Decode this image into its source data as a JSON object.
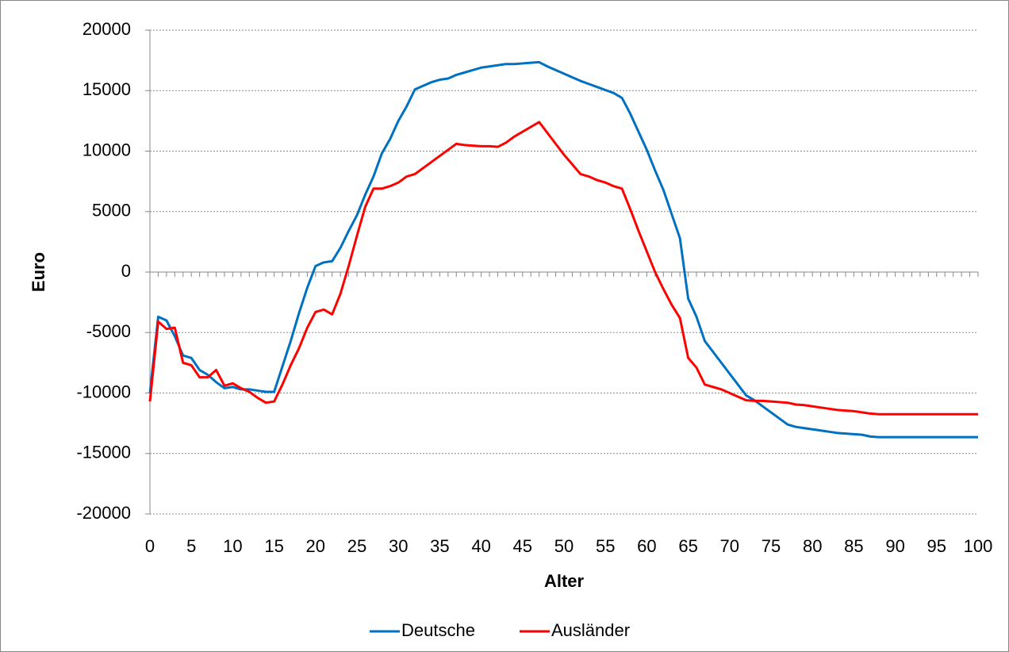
{
  "chart_data": {
    "type": "line",
    "x_label": "Alter",
    "y_label": "Euro",
    "x": [
      0,
      1,
      2,
      3,
      4,
      5,
      6,
      7,
      8,
      9,
      10,
      11,
      12,
      13,
      14,
      15,
      16,
      17,
      18,
      19,
      20,
      21,
      22,
      23,
      24,
      25,
      26,
      27,
      28,
      29,
      30,
      31,
      32,
      33,
      34,
      35,
      36,
      37,
      38,
      39,
      40,
      41,
      42,
      43,
      44,
      45,
      46,
      47,
      48,
      49,
      50,
      51,
      52,
      53,
      54,
      55,
      56,
      57,
      58,
      59,
      60,
      61,
      62,
      63,
      64,
      65,
      66,
      67,
      68,
      69,
      70,
      71,
      72,
      73,
      74,
      75,
      76,
      77,
      78,
      79,
      80,
      81,
      82,
      83,
      84,
      85,
      86,
      87,
      88,
      89,
      90,
      91,
      92,
      93,
      94,
      95,
      96,
      97,
      98,
      99,
      100
    ],
    "series": [
      {
        "name": "Deutsche",
        "color": "#0070c0",
        "values": [
          -10000,
          -3700,
          -4000,
          -5300,
          -6900,
          -7100,
          -8100,
          -8500,
          -9100,
          -9600,
          -9500,
          -9700,
          -9700,
          -9800,
          -9900,
          -9900,
          -7800,
          -5700,
          -3400,
          -1300,
          500,
          800,
          900,
          2000,
          3400,
          4700,
          6400,
          7900,
          9800,
          11000,
          12500,
          13700,
          15100,
          15400,
          15700,
          15900,
          16000,
          16300,
          16500,
          16700,
          16900,
          17000,
          17100,
          17200,
          17200,
          17250,
          17300,
          17350,
          17000,
          16700,
          16400,
          16100,
          15800,
          15550,
          15300,
          15050,
          14800,
          14400,
          13100,
          11600,
          10100,
          8400,
          6800,
          4800,
          2800,
          -2200,
          -3700,
          -5700,
          -6600,
          -7500,
          -8400,
          -9300,
          -10200,
          -10600,
          -11100,
          -11600,
          -12100,
          -12600,
          -12800,
          -12900,
          -13000,
          -13100,
          -13200,
          -13300,
          -13350,
          -13400,
          -13450,
          -13600,
          -13650,
          -13650,
          -13650,
          -13650,
          -13650,
          -13650,
          -13650,
          -13650,
          -13650,
          -13650,
          -13650,
          -13650,
          -13650
        ]
      },
      {
        "name": "Ausländer",
        "color": "#ff0000",
        "values": [
          -10700,
          -4100,
          -4700,
          -4600,
          -7500,
          -7700,
          -8700,
          -8700,
          -8100,
          -9400,
          -9200,
          -9600,
          -9900,
          -10400,
          -10800,
          -10700,
          -9300,
          -7700,
          -6300,
          -4600,
          -3300,
          -3100,
          -3500,
          -1800,
          500,
          3000,
          5400,
          6900,
          6900,
          7100,
          7400,
          7900,
          8100,
          8600,
          9100,
          9600,
          10100,
          10600,
          10500,
          10450,
          10400,
          10400,
          10350,
          10700,
          11200,
          11600,
          12000,
          12400,
          11500,
          10600,
          9700,
          8900,
          8100,
          7900,
          7600,
          7400,
          7100,
          6900,
          5200,
          3400,
          1700,
          0,
          -1400,
          -2700,
          -3800,
          -7100,
          -7900,
          -9300,
          -9500,
          -9700,
          -10000,
          -10300,
          -10600,
          -10650,
          -10650,
          -10700,
          -10750,
          -10800,
          -10950,
          -11000,
          -11100,
          -11200,
          -11300,
          -11400,
          -11450,
          -11500,
          -11600,
          -11700,
          -11750,
          -11750,
          -11750,
          -11750,
          -11750,
          -11750,
          -11750,
          -11750,
          -11750,
          -11750,
          -11750,
          -11750,
          -11750
        ]
      }
    ],
    "xlim": [
      0,
      100
    ],
    "xticks": [
      0,
      5,
      10,
      15,
      20,
      25,
      30,
      35,
      40,
      45,
      50,
      55,
      60,
      65,
      70,
      75,
      80,
      85,
      90,
      95,
      100
    ],
    "ylim": [
      -20000,
      20000
    ],
    "yticks": [
      -20000,
      -15000,
      -10000,
      -5000,
      0,
      5000,
      10000,
      15000,
      20000
    ],
    "grid": true,
    "legend": "bottom"
  }
}
